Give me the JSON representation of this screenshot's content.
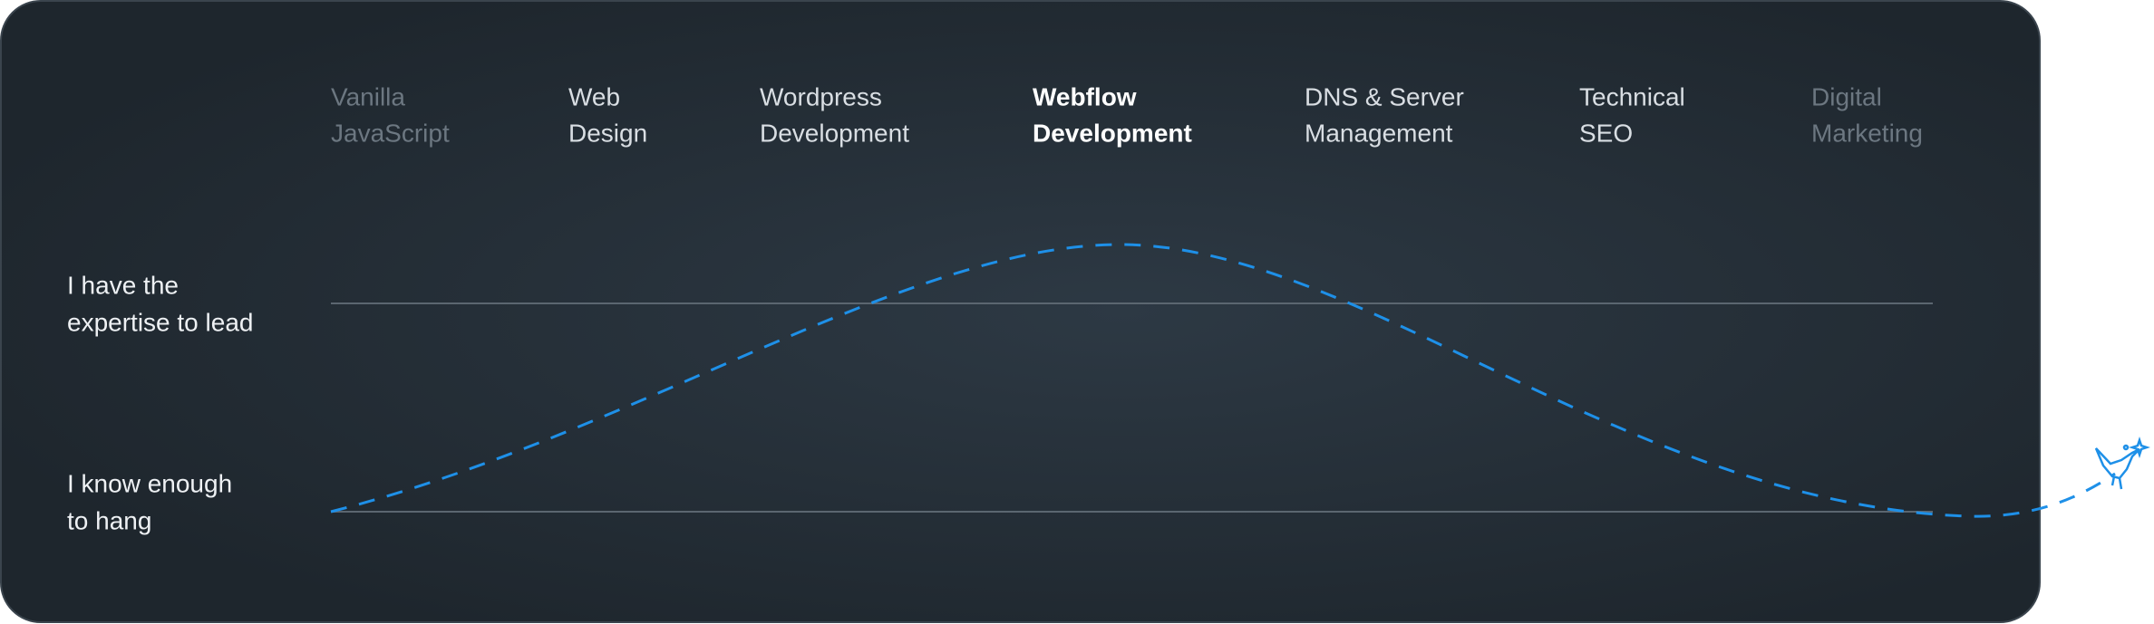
{
  "columns": [
    {
      "lines": [
        "Vanilla",
        "JavaScript"
      ],
      "style": "faded"
    },
    {
      "lines": [
        "Web",
        "Design"
      ],
      "style": "normal"
    },
    {
      "lines": [
        "Wordpress",
        "Development"
      ],
      "style": "normal"
    },
    {
      "lines": [
        "Webflow",
        "Development"
      ],
      "style": "highlight"
    },
    {
      "lines": [
        "DNS & Server",
        "Management"
      ],
      "style": "normal"
    },
    {
      "lines": [
        "Technical",
        "SEO"
      ],
      "style": "normal"
    },
    {
      "lines": [
        "Digital",
        "Marketing"
      ],
      "style": "faded"
    }
  ],
  "rows": [
    {
      "lines": [
        "I have the",
        "expertise to lead"
      ]
    },
    {
      "lines": [
        "I know enough",
        "to hang"
      ]
    }
  ]
}
